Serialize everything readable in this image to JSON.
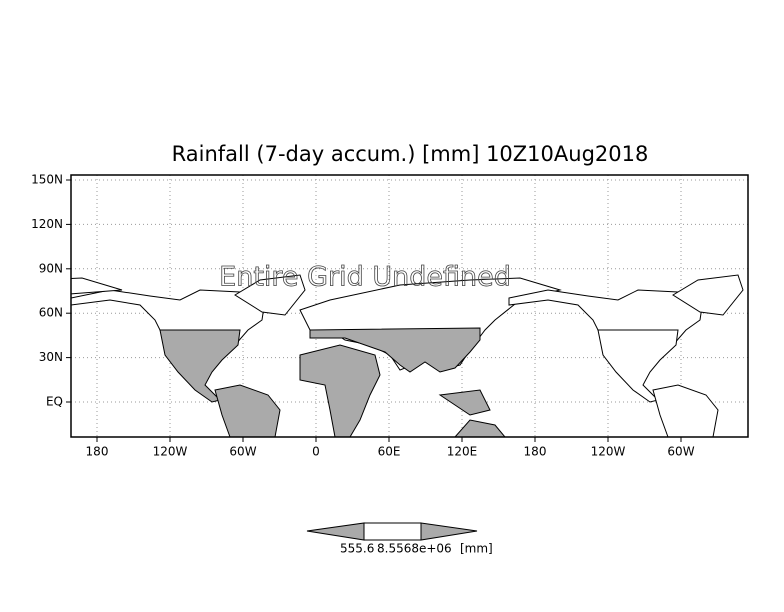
{
  "map": {
    "title": "Rainfall (7-day accum.) [mm] 10Z10Aug2018",
    "annotation": "Entire Grid Undefined",
    "lat_labels": [
      "150N",
      "120N",
      "90N",
      "60N",
      "30N",
      "EQ"
    ],
    "lon_labels": [
      "180",
      "120W",
      "60W",
      "0",
      "60E",
      "120E",
      "180",
      "120W",
      "60W"
    ],
    "colorbar_labels": [
      "555.6",
      "8.5568e+06",
      "[mm]"
    ]
  }
}
